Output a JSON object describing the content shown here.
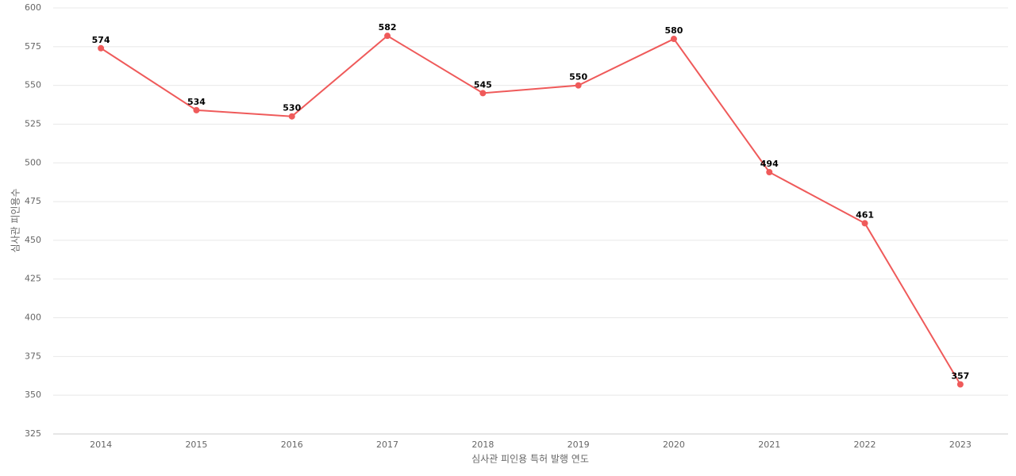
{
  "chart_data": {
    "type": "line",
    "x_label": "심사관 피인용 특허 발행 연도",
    "y_label": "심사관 피인용수",
    "categories": [
      "2014",
      "2015",
      "2016",
      "2017",
      "2018",
      "2019",
      "2020",
      "2021",
      "2022",
      "2023"
    ],
    "series": [
      {
        "name": "심사관 피인용수",
        "color": "#ef5a5a",
        "values": [
          574,
          534,
          530,
          582,
          545,
          550,
          580,
          494,
          461,
          357
        ]
      }
    ],
    "ylim": [
      325,
      600
    ],
    "yticks": [
      325,
      350,
      375,
      400,
      425,
      450,
      475,
      500,
      525,
      550,
      575,
      600
    ],
    "grid": true
  }
}
